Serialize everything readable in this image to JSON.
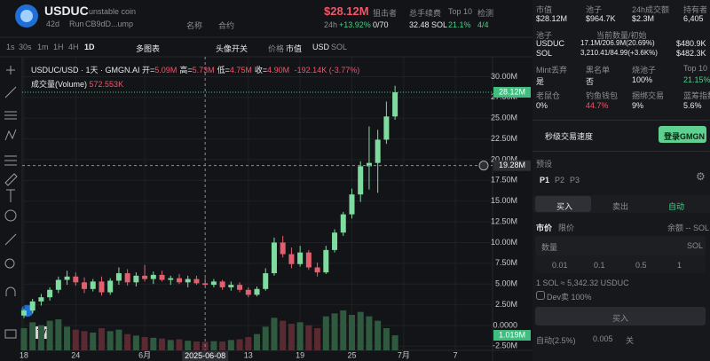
{
  "header": {
    "symbol": "USDUC",
    "name": "unstable coin",
    "age": "42d",
    "run": "Run",
    "address": "CB9dD...ump",
    "name_btn": "名称",
    "contract_btn": "合约",
    "market_cap": "$28.12M",
    "change_label": "24h",
    "change": "+13.92%",
    "stats": [
      {
        "label": "狙击者",
        "value": "0/70"
      },
      {
        "label": "总手续费",
        "value": "32.48 SOL"
      },
      {
        "label": "Top 10",
        "value": "21.1%"
      },
      {
        "label": "检测",
        "value": "4/4"
      }
    ]
  },
  "toolbar": {
    "intervals": [
      "1s",
      "30s",
      "1m",
      "1H",
      "4H",
      "1D"
    ],
    "multi": "多图表",
    "avatar": "头像开关",
    "price": "价格",
    "mcap": "市值",
    "usd": "USD",
    "sol": "SOL"
  },
  "chart_data": {
    "type": "candlestick",
    "title": "USDUC/USD · 1天 · GMGN.AI",
    "ohlc_legend": [
      {
        "label": "开=",
        "value": "5.09M"
      },
      {
        "label": "高=",
        "value": "5.73M"
      },
      {
        "label": "低=",
        "value": "4.75M"
      },
      {
        "label": "收=",
        "value": "4.90M"
      }
    ],
    "change_text": "-192.14K (-3.77%)",
    "volume_title": "成交量(Volume)",
    "volume_label": "572.553K",
    "last_volume_label": "1.019M",
    "up_color": "#7fdc9f",
    "down_color": "#e0606f",
    "x": [
      0,
      1,
      2,
      3,
      4,
      5,
      6,
      7,
      8,
      9,
      10,
      11,
      12,
      13,
      14,
      15,
      16,
      17,
      18,
      19,
      20,
      21,
      22,
      23,
      24,
      25,
      26,
      27,
      28,
      29,
      30,
      31,
      32,
      33,
      34,
      35,
      36,
      37,
      38,
      39,
      40,
      41,
      42,
      43
    ],
    "open": [
      1200000,
      1800000,
      2900000,
      3400000,
      4300000,
      5500000,
      5900000,
      5200000,
      4400000,
      5300000,
      4000000,
      5400000,
      6300000,
      5200000,
      6000000,
      5600000,
      6100000,
      5500000,
      5700000,
      5200000,
      5600000,
      5090000,
      4900000,
      5300000,
      4600000,
      4900000,
      4300000,
      3700000,
      4400000,
      6300000,
      10000000,
      8600000,
      7400000,
      8800000,
      7000000,
      6400000,
      9100000,
      11200000,
      13400000,
      15800000,
      19200000,
      19600000,
      22400000,
      25200000
    ],
    "high": [
      2000000,
      3200000,
      3800000,
      4600000,
      5900000,
      6600000,
      6400000,
      5800000,
      5600000,
      5900000,
      5700000,
      7000000,
      6800000,
      6400000,
      7300000,
      6500000,
      6600000,
      6000000,
      6200000,
      6000000,
      6000000,
      5730000,
      5600000,
      5500000,
      5300000,
      5200000,
      4600000,
      4700000,
      6900000,
      10600000,
      10800000,
      9400000,
      9600000,
      9100000,
      7600000,
      9600000,
      11600000,
      13700000,
      16500000,
      19800000,
      24000000,
      23600000,
      27000000,
      28900000
    ],
    "low": [
      900000,
      1500000,
      2400000,
      3000000,
      3900000,
      4900000,
      4800000,
      3900000,
      4100000,
      3600000,
      3700000,
      4900000,
      4800000,
      4700000,
      5300000,
      5000000,
      5300000,
      4900000,
      5000000,
      4600000,
      4900000,
      4750000,
      4600000,
      4300000,
      4200000,
      4000000,
      3400000,
      3500000,
      4200000,
      6000000,
      8200000,
      6900000,
      7100000,
      6700000,
      5900000,
      6200000,
      8800000,
      10800000,
      12900000,
      14900000,
      16400000,
      16000000,
      21900000,
      24800000
    ],
    "close": [
      1800000,
      2900000,
      3400000,
      4300000,
      5500000,
      5900000,
      5200000,
      4400000,
      5300000,
      4000000,
      5400000,
      6300000,
      5200000,
      6000000,
      5600000,
      6100000,
      5500000,
      5700000,
      5200000,
      5600000,
      5090000,
      4900000,
      5300000,
      4600000,
      4900000,
      4300000,
      3700000,
      4400000,
      6300000,
      10000000,
      8600000,
      7400000,
      8800000,
      7000000,
      6400000,
      9100000,
      11200000,
      13400000,
      15800000,
      19200000,
      19600000,
      22400000,
      25200000,
      28120000
    ],
    "volume": [
      1500000,
      1900000,
      1700000,
      2000000,
      2100000,
      1600000,
      1400000,
      1300000,
      1200000,
      1500000,
      1300000,
      1400000,
      1100000,
      1000000,
      900000,
      850000,
      800000,
      700000,
      750000,
      650000,
      600000,
      572553,
      620000,
      600000,
      700000,
      750000,
      900000,
      1100000,
      1600000,
      2200000,
      2000000,
      1800000,
      1900000,
      1700000,
      1500000,
      2300000,
      2500000,
      2700000,
      2400000,
      2600000,
      2300000,
      2000000,
      1500000,
      1019000
    ],
    "xlim": [
      -0.2,
      54.3
    ],
    "xticks": [
      {
        "value": 0,
        "label": "18"
      },
      {
        "value": 6,
        "label": "24"
      },
      {
        "value": 14,
        "label": "6月"
      },
      {
        "value": 26,
        "label": "13"
      },
      {
        "value": 32,
        "label": "19"
      },
      {
        "value": 38,
        "label": "25"
      },
      {
        "value": 44,
        "label": "7月"
      },
      {
        "value": 50,
        "label": "7"
      }
    ],
    "ylim": [
      -3000000,
      32400000
    ],
    "yticks": [
      {
        "value": -2500000,
        "label": "-2.50M"
      },
      {
        "value": 0,
        "label": "0.0000"
      },
      {
        "value": 2500000,
        "label": "2.50M"
      },
      {
        "value": 5000000,
        "label": "5.00M"
      },
      {
        "value": 7500000,
        "label": "7.50M"
      },
      {
        "value": 10000000,
        "label": "10.00M"
      },
      {
        "value": 12500000,
        "label": "12.50M"
      },
      {
        "value": 15000000,
        "label": "15.00M"
      },
      {
        "value": 17500000,
        "label": "17.50M"
      },
      {
        "value": 20000000,
        "label": "20.00M"
      },
      {
        "value": 22500000,
        "label": "22.50M"
      },
      {
        "value": 25000000,
        "label": "25.00M"
      },
      {
        "value": 27500000,
        "label": "27.50M"
      },
      {
        "value": 30000000,
        "label": "30.00M"
      }
    ],
    "price_line": {
      "value": 28120000,
      "label": "28.12M"
    },
    "crosshair": {
      "x": 21,
      "x_label": "2025-06-08",
      "y": 19280000,
      "y_label": "19.28M"
    },
    "grid": true
  },
  "panel": {
    "stats1": [
      {
        "label": "市值",
        "value": "$28.12M"
      },
      {
        "label": "池子",
        "value": "$964.7K"
      },
      {
        "label": "24h成交额",
        "value": "$2.3M"
      },
      {
        "label": "持有者",
        "value": "6,405"
      }
    ],
    "pool": {
      "label": "池子",
      "amount_label": "当前数量/初始",
      "rows": [
        [
          "USDUC",
          "17.1M/206.9M(20.69%)",
          "$480.9K"
        ],
        [
          "SOL",
          "3,210.41/84.99(+3.6K%)",
          "$482.3K"
        ]
      ]
    },
    "stats2": [
      {
        "label": "Mint丢弃",
        "value": "是"
      },
      {
        "label": "黑名单",
        "value": "否"
      },
      {
        "label": "烧池子",
        "value": "100%"
      },
      {
        "label": "Top 10",
        "value": "21.15%"
      }
    ],
    "stats3": [
      {
        "label": "老鼠仓",
        "value": "0%"
      },
      {
        "label": "钓鱼钱包",
        "value": "44.7%"
      },
      {
        "label": "捆绑交易",
        "value": "9%"
      },
      {
        "label": "蓝筹指数",
        "value": "5.6%"
      }
    ],
    "speed": "秒级交易速度",
    "login": "登录GMGN",
    "preset": "预设",
    "presets": [
      "P1",
      "P2",
      "P3"
    ],
    "tabs": [
      "买入",
      "卖出",
      "自动"
    ],
    "order_types": [
      "市价",
      "限价"
    ],
    "balance": "余额 -- SOL",
    "amount": "数量",
    "unit": "SOL",
    "quick": [
      "0.01",
      "0.1",
      "0.5",
      "1"
    ],
    "rate": "1 SOL ≈ 5,342.32 USDUC",
    "dev_sell": "Dev卖 100%",
    "buy": "买入",
    "footer": [
      "自动(2.5%)",
      "0.005",
      "关"
    ]
  }
}
